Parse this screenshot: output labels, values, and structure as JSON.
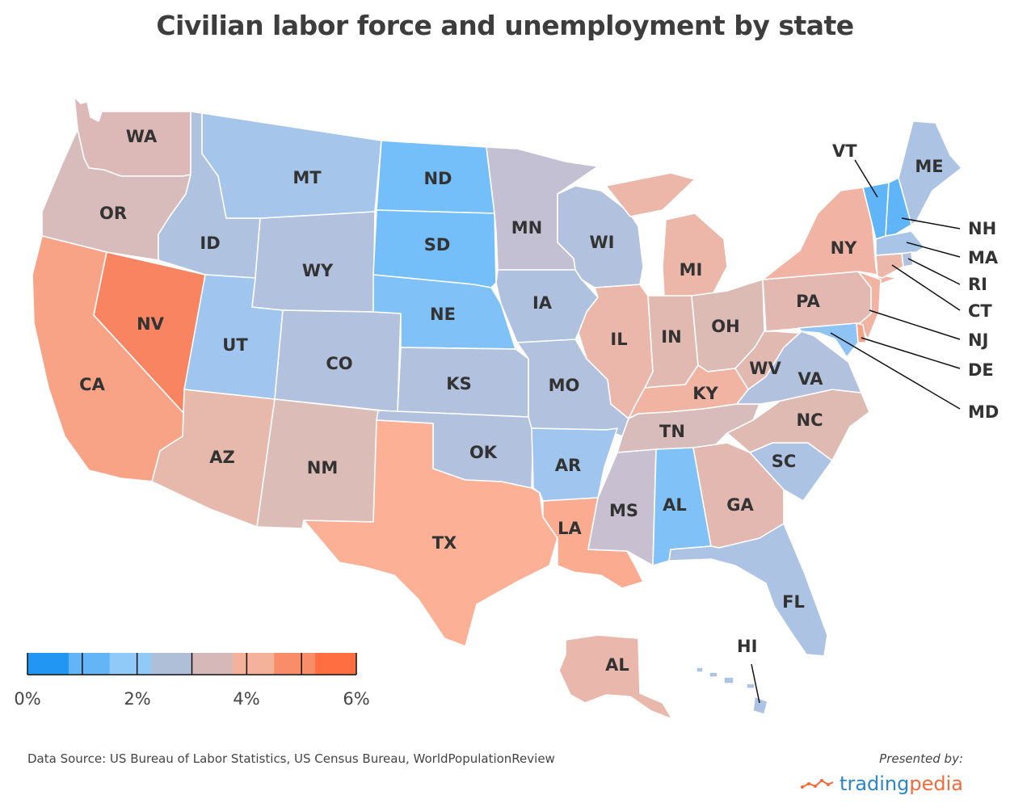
{
  "title": "Civilian labor force and unemployment by state",
  "source": "Data Source: US Bureau of Labor Statistics, US Census Bureau, WorldPopulationReview",
  "presented_by": "Presented by:",
  "brand": {
    "part1": "trading",
    "part2": "pedia",
    "icon": "chart-trend-icon"
  },
  "legend": {
    "ticks": [
      "0%",
      "2%",
      "4%",
      "6%"
    ],
    "colors": [
      "#2196f3",
      "#64b5f6",
      "#90caf9",
      "#b0bfd8",
      "#d7b8b8",
      "#f5b29b",
      "#f98d6a",
      "#ff6e40"
    ]
  },
  "states": [
    {
      "code": "WA",
      "color": "#dcb9b7"
    },
    {
      "code": "OR",
      "color": "#d7bcbb"
    },
    {
      "code": "CA",
      "color": "#f9a386"
    },
    {
      "code": "NV",
      "color": "#f88462"
    },
    {
      "code": "ID",
      "color": "#afc2e0"
    },
    {
      "code": "MT",
      "color": "#a5c5ea"
    },
    {
      "code": "WY",
      "color": "#b1c1de"
    },
    {
      "code": "UT",
      "color": "#a0c6ef"
    },
    {
      "code": "AZ",
      "color": "#e6b9ac"
    },
    {
      "code": "CO",
      "color": "#b1c1de"
    },
    {
      "code": "NM",
      "color": "#dcbcb6"
    },
    {
      "code": "ND",
      "color": "#74bef9"
    },
    {
      "code": "SD",
      "color": "#74bef9"
    },
    {
      "code": "NE",
      "color": "#80c2f7"
    },
    {
      "code": "KS",
      "color": "#b1c1de"
    },
    {
      "code": "OK",
      "color": "#b1c1de"
    },
    {
      "code": "TX",
      "color": "#fcb096"
    },
    {
      "code": "MN",
      "color": "#c2c0d2"
    },
    {
      "code": "IA",
      "color": "#aec2e0"
    },
    {
      "code": "MO",
      "color": "#b1c1de"
    },
    {
      "code": "AR",
      "color": "#a0c6ef"
    },
    {
      "code": "LA",
      "color": "#fbab90"
    },
    {
      "code": "WI",
      "color": "#b1c1de"
    },
    {
      "code": "IL",
      "color": "#eab7aa"
    },
    {
      "code": "MS",
      "color": "#c8bfd0"
    },
    {
      "code": "MI",
      "color": "#ecb6a8"
    },
    {
      "code": "IN",
      "color": "#e1b9b1"
    },
    {
      "code": "OH",
      "color": "#dcbbb5"
    },
    {
      "code": "KY",
      "color": "#f2b4a2"
    },
    {
      "code": "TN",
      "color": "#d7bcbb"
    },
    {
      "code": "AL",
      "color": "#80c2f7"
    },
    {
      "code": "GA",
      "color": "#e2b8b0"
    },
    {
      "code": "FL",
      "color": "#adc3e3"
    },
    {
      "code": "SC",
      "color": "#adc3e3"
    },
    {
      "code": "NC",
      "color": "#dfbab3"
    },
    {
      "code": "VA",
      "color": "#b1c1de"
    },
    {
      "code": "WV",
      "color": "#e1b9b1"
    },
    {
      "code": "PA",
      "color": "#e2b8b0"
    },
    {
      "code": "NY",
      "color": "#f1b4a4"
    },
    {
      "code": "VT",
      "color": "#5fb5f7"
    },
    {
      "code": "NH",
      "color": "#5fb5f7"
    },
    {
      "code": "ME",
      "color": "#adc3e3"
    },
    {
      "code": "MA",
      "color": "#a8c5e8"
    },
    {
      "code": "RI",
      "color": "#b1c1de"
    },
    {
      "code": "CT",
      "color": "#eab7aa"
    },
    {
      "code": "NJ",
      "color": "#f2b4a2"
    },
    {
      "code": "DE",
      "color": "#f9a386"
    },
    {
      "code": "MD",
      "color": "#8fc3f4"
    },
    {
      "code": "AK",
      "color": "#e9b7ab",
      "label": "AL"
    },
    {
      "code": "HI",
      "color": "#adc3e3"
    }
  ]
}
